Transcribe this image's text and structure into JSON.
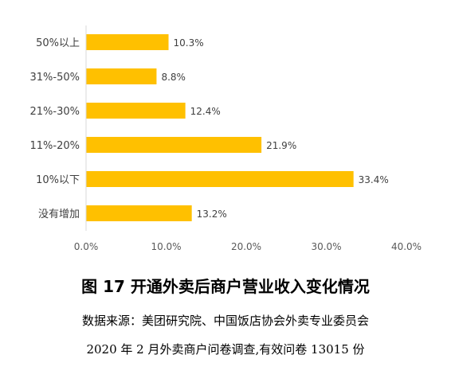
{
  "chart_data": {
    "type": "bar",
    "orientation": "horizontal",
    "categories": [
      "50%以上",
      "31%-50%",
      "21%-30%",
      "11%-20%",
      "10%以下",
      "没有增加"
    ],
    "values": [
      10.3,
      8.8,
      12.4,
      21.9,
      33.4,
      13.2
    ],
    "value_labels": [
      "10.3%",
      "8.8%",
      "12.4%",
      "21.9%",
      "33.4%",
      "13.2%"
    ],
    "xlim": [
      0,
      40
    ],
    "xticks": [
      0,
      10,
      20,
      30,
      40
    ],
    "xtick_labels": [
      "0.0%",
      "10.0%",
      "20.0%",
      "30.0%",
      "40.0%"
    ],
    "bar_color": "#FFC000",
    "grid": false,
    "legend": "none"
  },
  "caption": {
    "title": "图 17  开通外卖后商户营业收入变化情况",
    "source_line1": "数据来源：美团研究院、中国饭店协会外卖专业委员会",
    "source_line2": "2020 年 2 月外卖商户问卷调查,有效问卷 13015 份"
  }
}
